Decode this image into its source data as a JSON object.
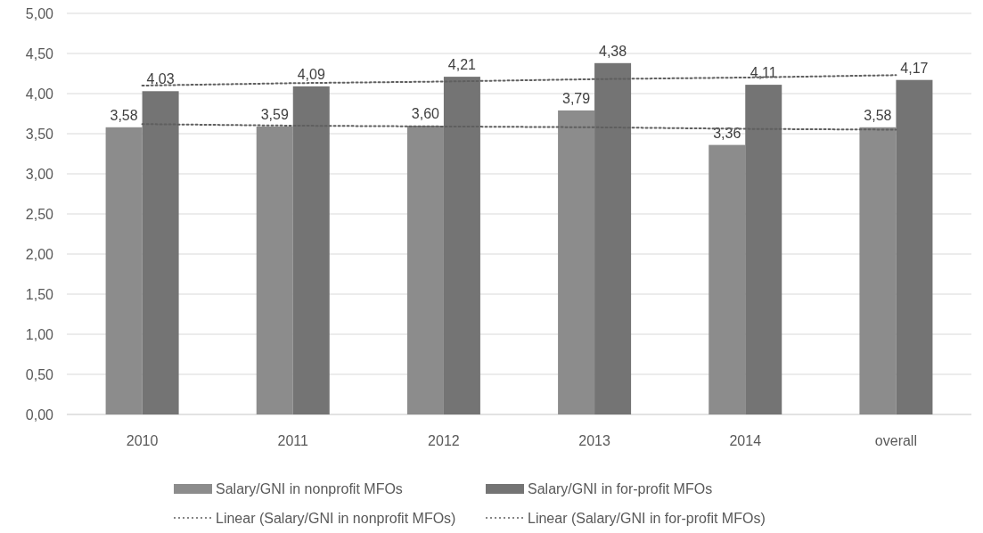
{
  "chart_data": {
    "type": "bar",
    "categories": [
      "2010",
      "2011",
      "2012",
      "2013",
      "2014",
      "overall"
    ],
    "series": [
      {
        "name": "Salary/GNI in nonprofit MFOs",
        "color": "#8c8c8c",
        "values": [
          3.58,
          3.59,
          3.6,
          3.79,
          3.36,
          3.58
        ],
        "value_labels": [
          "3,58",
          "3,59",
          "3,60",
          "3,79",
          "3,36",
          "3,58"
        ]
      },
      {
        "name": "Salary/GNI in for-profit MFOs",
        "color": "#747474",
        "values": [
          4.03,
          4.09,
          4.21,
          4.38,
          4.11,
          4.17
        ],
        "value_labels": [
          "4,03",
          "4,09",
          "4,21",
          "4,38",
          "4,11",
          "4,17"
        ]
      },
      {
        "name": "Linear  (Salary/GNI in nonprofit MFOs)",
        "type": "line",
        "color": "#5f5f5f",
        "values": [
          3.62,
          3.6,
          3.59,
          3.58,
          3.56,
          3.55
        ],
        "line_style": "dotted",
        "marker": "none"
      },
      {
        "name": "Linear  (Salary/GNI in for-profit MFOs)",
        "type": "line",
        "color": "#5f5f5f",
        "values": [
          4.1,
          4.13,
          4.15,
          4.18,
          4.2,
          4.23
        ],
        "line_style": "dotted",
        "marker": "none"
      }
    ],
    "ylim": [
      0,
      5
    ],
    "yticks": [
      {
        "value": 0,
        "label": "0,00"
      },
      {
        "value": 0.5,
        "label": "0,50"
      },
      {
        "value": 1,
        "label": "1,00"
      },
      {
        "value": 1.5,
        "label": "1,50"
      },
      {
        "value": 2,
        "label": "2,00"
      },
      {
        "value": 2.5,
        "label": "2,50"
      },
      {
        "value": 3,
        "label": "3,00"
      },
      {
        "value": 3.5,
        "label": "3,50"
      },
      {
        "value": 4,
        "label": "4,00"
      },
      {
        "value": 4.5,
        "label": "4,50"
      },
      {
        "value": 5,
        "label": "5,00"
      }
    ],
    "grid": "y",
    "legend": "bottom"
  }
}
